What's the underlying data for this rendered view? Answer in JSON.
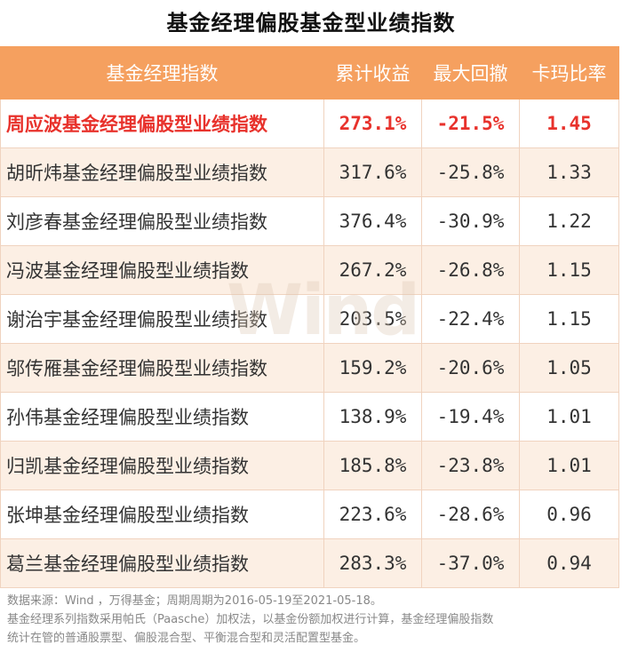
{
  "title": "基金经理偏股基金型业绩指数",
  "table": {
    "headers": [
      "基金经理指数",
      "累计收益",
      "最大回撤",
      "卡玛比率"
    ],
    "rows": [
      {
        "name": "周应波基金经理偏股型业绩指数",
        "return": "273.1%",
        "drawdown": "-21.5%",
        "calmar": "1.45"
      },
      {
        "name": "胡昕炜基金经理偏股型业绩指数",
        "return": "317.6%",
        "drawdown": "-25.8%",
        "calmar": "1.33"
      },
      {
        "name": "刘彦春基金经理偏股型业绩指数",
        "return": "376.4%",
        "drawdown": "-30.9%",
        "calmar": "1.22"
      },
      {
        "name": "冯波基金经理偏股型业绩指数",
        "return": "267.2%",
        "drawdown": "-26.8%",
        "calmar": "1.15"
      },
      {
        "name": "谢治宇基金经理偏股型业绩指数",
        "return": "203.5%",
        "drawdown": "-22.4%",
        "calmar": "1.15"
      },
      {
        "name": "邬传雁基金经理偏股型业绩指数",
        "return": "159.2%",
        "drawdown": "-20.6%",
        "calmar": "1.05"
      },
      {
        "name": "孙伟基金经理偏股型业绩指数",
        "return": "138.9%",
        "drawdown": "-19.4%",
        "calmar": "1.01"
      },
      {
        "name": "归凯基金经理偏股型业绩指数",
        "return": "185.8%",
        "drawdown": "-23.8%",
        "calmar": "1.01"
      },
      {
        "name": "张坤基金经理偏股型业绩指数",
        "return": "223.6%",
        "drawdown": "-28.6%",
        "calmar": "0.96"
      },
      {
        "name": "葛兰基金经理偏股型业绩指数",
        "return": "283.3%",
        "drawdown": "-37.0%",
        "calmar": "0.94"
      }
    ]
  },
  "watermark": "Wind",
  "notes": [
    "数据来源：Wind ，万得基金；周期周期为2016-05-19至2021-05-18。",
    "基金经理系列指数采用帕氏（Paasche）加权法，以基金份额加权进行计算，基金经理偏股指数",
    "统计在管的普通股票型、偏股混合型、平衡混合型和灵活配置型基金。"
  ],
  "colors": {
    "header_bg": "#f5a05f",
    "highlight_text": "#e8322c",
    "stripe_bg": "#fcefe4"
  }
}
